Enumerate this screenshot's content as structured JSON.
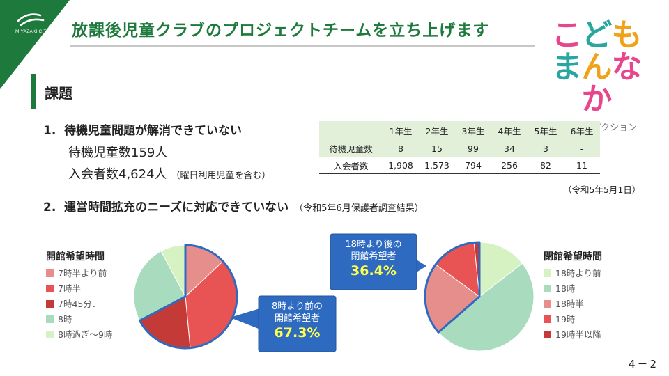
{
  "header": {
    "city": "MIYAZAKI CITY",
    "title": "放課後児童クラブのプロジェクトチームを立ち上げます",
    "logo": {
      "line1": "こども",
      "line2": "まんなか",
      "sub": "宮崎市のアクション"
    }
  },
  "section": {
    "title": "課題"
  },
  "issue1": {
    "number": "1.",
    "text": "待機児童問題が解消できていない",
    "waiting": "待機児童数159人",
    "members": "入会者数4,624人",
    "members_note": "（曜日利用児童を含む）"
  },
  "issue2": {
    "number": "2.",
    "text": "運営時間拡充のニーズに対応できていない",
    "note": "（令和5年6月保護者調査結果）"
  },
  "table": {
    "headers": [
      "",
      "1年生",
      "2年生",
      "3年生",
      "4年生",
      "5年生",
      "6年生"
    ],
    "rows": [
      {
        "label": "待機児童数",
        "values": [
          "8",
          "15",
          "99",
          "34",
          "3",
          "-"
        ]
      },
      {
        "label": "入会者数",
        "values": [
          "1,908",
          "1,573",
          "794",
          "256",
          "82",
          "11"
        ]
      }
    ],
    "note": "（令和5年5月1日）"
  },
  "chart_data": [
    {
      "type": "pie",
      "title": "開館希望時間",
      "labels": [
        "7時半より前",
        "7時半",
        "7時45分．",
        "8時",
        "8時過ぎ～9時"
      ],
      "values": [
        13.0,
        35.5,
        18.8,
        24.9,
        7.8
      ],
      "colors": [
        "#e68e8c",
        "#e85454",
        "#c43a36",
        "#a9dcbe",
        "#d7f2c2"
      ],
      "highlight": [
        0,
        1,
        2
      ],
      "callout": {
        "line1": "8時より前の",
        "line2": "開館希望者",
        "value": "67.3%"
      }
    },
    {
      "type": "pie",
      "title": "閉館希望時間",
      "labels": [
        "18時より前",
        "18時",
        "18時半",
        "19時",
        "19時半以降"
      ],
      "values": [
        14.5,
        49.1,
        21.5,
        13.3,
        1.6
      ],
      "colors": [
        "#d7f2c2",
        "#a9dcbe",
        "#e68e8c",
        "#e85454",
        "#c43a36"
      ],
      "highlight": [
        2,
        3,
        4
      ],
      "callout": {
        "line1": "18時より後の",
        "line2": "閉館希望者",
        "value": "36.4%"
      }
    }
  ],
  "page_number": "4－2",
  "colors": {
    "brand_green": "#1e7a3c",
    "callout_blue": "#2e6bc0",
    "highlight_border": "#2e6bc0"
  }
}
